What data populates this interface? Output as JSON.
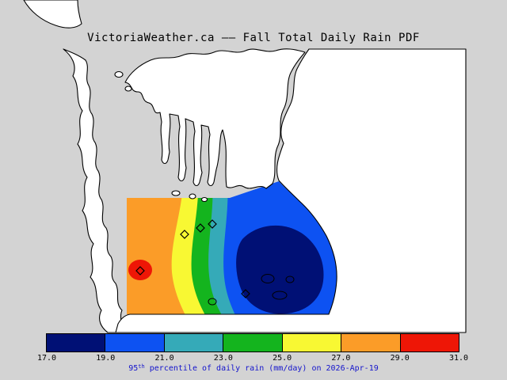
{
  "title": "VictoriaWeather.ca –– Fall Total Daily Rain PDF",
  "caption": {
    "prefix": "95",
    "superscript": "th",
    "rest": " percentile of daily rain (mm/day) on 2026-Apr-19"
  },
  "palette": {
    "water_gray": "#d3d3d3",
    "land_white": "#ffffff",
    "coastline_black": "#000000",
    "navy": "#001075",
    "blue": "#0d52f2",
    "teal": "#35aab8",
    "green": "#14b41e",
    "yellow": "#f8f833",
    "orange": "#fb9c28",
    "red": "#ee1606",
    "caption_text": "#1414cc",
    "title_text": "#000000"
  },
  "markers": {
    "shape": "diamond-outline",
    "count": 5
  },
  "chart_data": {
    "type": "heatmap",
    "subtype": "filled-contour-map-over-coastline",
    "title": "VictoriaWeather.ca –– Fall Total Daily Rain PDF",
    "variable": "95th percentile of daily rain",
    "units": "mm/day",
    "date": "2026-Apr-19",
    "contour_levels": [
      17.0,
      19.0,
      21.0,
      23.0,
      25.0,
      27.0,
      29.0,
      31.0
    ],
    "colorbar": {
      "orientation": "horizontal",
      "position": "bottom",
      "tick_labels": [
        "17.0",
        "19.0",
        "21.0",
        "23.0",
        "25.0",
        "27.0",
        "29.0",
        "31.0"
      ],
      "segment_colors": [
        "#001075",
        "#0d52f2",
        "#35aab8",
        "#14b41e",
        "#f8f833",
        "#fb9c28",
        "#ee1606"
      ],
      "label": "95th percentile of daily rain (mm/day) on 2026-Apr-19"
    },
    "field": {
      "description": "Filled contour field over the coastal domain; values decrease from west to east",
      "bands_west_to_east": [
        "29-31 (red core)",
        "27-29 (orange)",
        "25-27 (yellow)",
        "23-25 (green)",
        "21-23 (teal)",
        "19-21 (blue)",
        "17-19 (dark navy core, southeast)"
      ],
      "west_maximum": "> 29 mm/day red core near western edge of domain",
      "east_minimum": "< 19 mm/day dark navy core in the southeast of domain",
      "station_markers": 5
    }
  }
}
